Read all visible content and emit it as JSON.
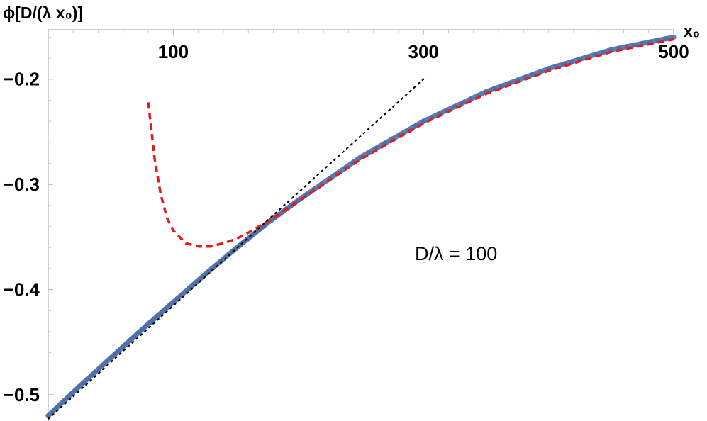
{
  "chart_data": {
    "type": "line",
    "xlabel": "x₀",
    "ylabel": "ϕ[D/(λ x₀)]",
    "annotation": "D/λ = 100",
    "x_ticks": [
      100,
      300,
      500
    ],
    "x_tick_labels": [
      "100",
      "300",
      "500"
    ],
    "y_ticks": [
      -0.2,
      -0.3,
      -0.4,
      -0.5
    ],
    "y_tick_labels": [
      "−0.2",
      "−0.3",
      "−0.4",
      "−0.5"
    ],
    "xlim": [
      0,
      500
    ],
    "ylim": [
      -0.525,
      -0.153
    ],
    "grid": false,
    "series": [
      {
        "style": "thick solid, dotted markers",
        "color": "#5b7db3",
        "x": [
          0,
          25,
          50,
          75,
          100,
          125,
          150,
          175,
          200,
          250,
          300,
          350,
          400,
          450,
          500
        ],
        "y": [
          -0.52,
          -0.492,
          -0.465,
          -0.438,
          -0.412,
          -0.386,
          -0.361,
          -0.337,
          -0.315,
          -0.274,
          -0.24,
          -0.212,
          -0.19,
          -0.172,
          -0.16
        ]
      },
      {
        "style": "dashed",
        "color": "#e8191b",
        "x": [
          80,
          85,
          90,
          95,
          100,
          110,
          120,
          130,
          140,
          150,
          160,
          170,
          180,
          200,
          250,
          300,
          350,
          400,
          450,
          500
        ],
        "y": [
          -0.222,
          -0.275,
          -0.31,
          -0.332,
          -0.344,
          -0.356,
          -0.359,
          -0.359,
          -0.356,
          -0.352,
          -0.346,
          -0.339,
          -0.332,
          -0.316,
          -0.276,
          -0.242,
          -0.214,
          -0.192,
          -0.174,
          -0.162
        ]
      },
      {
        "style": "dotted",
        "color": "#000000",
        "x": [
          0,
          300
        ],
        "y": [
          -0.523,
          -0.2
        ]
      }
    ]
  }
}
